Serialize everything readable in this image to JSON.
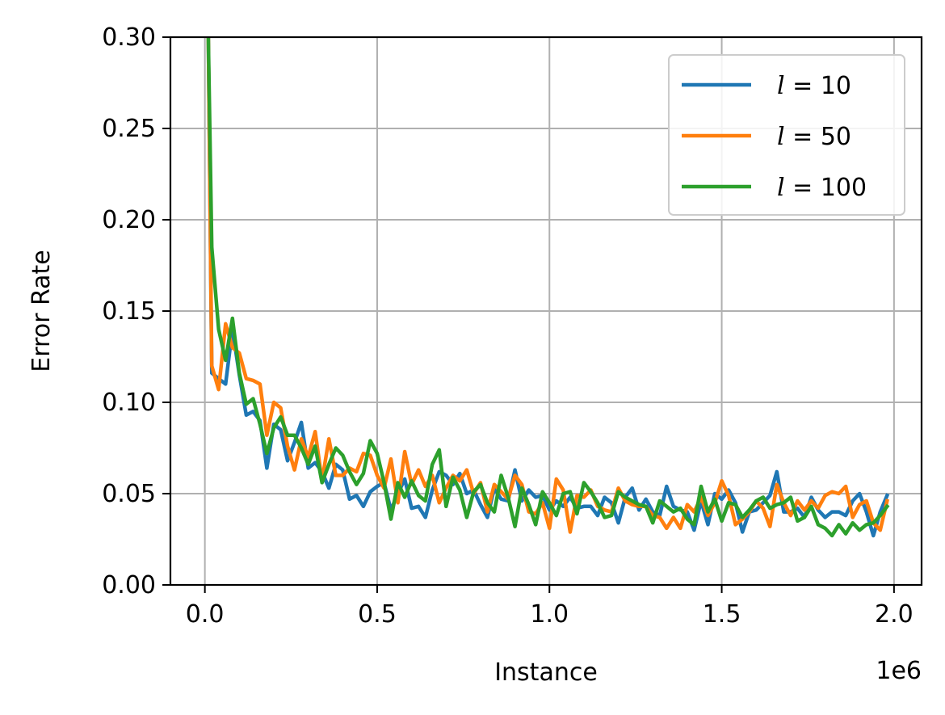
{
  "chart_data": {
    "type": "line",
    "xlabel": "Instance",
    "ylabel": "Error Rate",
    "x_offset_label": "1e6",
    "xlim": [
      -0.1,
      2.08
    ],
    "ylim": [
      0.0,
      0.3
    ],
    "x_ticks": [
      0.0,
      0.5,
      1.0,
      1.5,
      2.0
    ],
    "x_tick_labels": [
      "0.0",
      "0.5",
      "1.0",
      "1.5",
      "2.0"
    ],
    "y_ticks": [
      0.0,
      0.05,
      0.1,
      0.15,
      0.2,
      0.25,
      0.3
    ],
    "y_tick_labels": [
      "0.00",
      "0.05",
      "0.10",
      "0.15",
      "0.20",
      "0.25",
      "0.30"
    ],
    "grid": true,
    "legend_position": "top-right",
    "x": [
      0.01,
      0.02,
      0.04,
      0.06,
      0.08,
      0.1,
      0.12,
      0.14,
      0.16,
      0.18,
      0.2,
      0.22,
      0.24,
      0.26,
      0.28,
      0.3,
      0.32,
      0.34,
      0.36,
      0.38,
      0.4,
      0.42,
      0.44,
      0.46,
      0.48,
      0.5,
      0.52,
      0.54,
      0.56,
      0.58,
      0.6,
      0.62,
      0.64,
      0.66,
      0.68,
      0.7,
      0.72,
      0.74,
      0.76,
      0.78,
      0.8,
      0.82,
      0.84,
      0.86,
      0.88,
      0.9,
      0.92,
      0.94,
      0.96,
      0.98,
      1.0,
      1.02,
      1.04,
      1.06,
      1.08,
      1.1,
      1.12,
      1.14,
      1.16,
      1.18,
      1.2,
      1.22,
      1.24,
      1.26,
      1.28,
      1.3,
      1.32,
      1.34,
      1.36,
      1.38,
      1.4,
      1.42,
      1.44,
      1.46,
      1.48,
      1.5,
      1.52,
      1.54,
      1.56,
      1.58,
      1.6,
      1.62,
      1.64,
      1.66,
      1.68,
      1.7,
      1.72,
      1.74,
      1.76,
      1.78,
      1.8,
      1.82,
      1.84,
      1.86,
      1.88,
      1.9,
      1.92,
      1.94,
      1.96,
      1.98
    ],
    "series": [
      {
        "name": "l = 10",
        "color": "#1f77b4",
        "values": [
          0.3,
          0.116,
          0.113,
          0.11,
          0.14,
          0.115,
          0.093,
          0.095,
          0.09,
          0.064,
          0.088,
          0.085,
          0.068,
          0.078,
          0.089,
          0.064,
          0.067,
          0.062,
          0.053,
          0.066,
          0.063,
          0.047,
          0.049,
          0.043,
          0.051,
          0.054,
          0.056,
          0.041,
          0.05,
          0.058,
          0.042,
          0.043,
          0.037,
          0.052,
          0.062,
          0.06,
          0.055,
          0.061,
          0.05,
          0.052,
          0.044,
          0.037,
          0.053,
          0.047,
          0.046,
          0.063,
          0.046,
          0.052,
          0.048,
          0.049,
          0.041,
          0.046,
          0.043,
          0.048,
          0.042,
          0.043,
          0.043,
          0.038,
          0.048,
          0.045,
          0.034,
          0.048,
          0.053,
          0.041,
          0.047,
          0.04,
          0.038,
          0.054,
          0.043,
          0.041,
          0.04,
          0.03,
          0.046,
          0.033,
          0.05,
          0.047,
          0.052,
          0.045,
          0.029,
          0.04,
          0.041,
          0.045,
          0.049,
          0.062,
          0.04,
          0.04,
          0.042,
          0.037,
          0.048,
          0.041,
          0.037,
          0.04,
          0.04,
          0.038,
          0.046,
          0.05,
          0.04,
          0.027,
          0.04,
          0.049
        ]
      },
      {
        "name": "l = 50",
        "color": "#ff7f0e",
        "values": [
          0.3,
          0.12,
          0.107,
          0.143,
          0.13,
          0.127,
          0.113,
          0.112,
          0.11,
          0.082,
          0.1,
          0.097,
          0.076,
          0.063,
          0.08,
          0.07,
          0.084,
          0.057,
          0.08,
          0.06,
          0.06,
          0.064,
          0.062,
          0.072,
          0.071,
          0.06,
          0.053,
          0.069,
          0.045,
          0.073,
          0.055,
          0.063,
          0.054,
          0.06,
          0.045,
          0.053,
          0.06,
          0.057,
          0.063,
          0.05,
          0.056,
          0.04,
          0.055,
          0.051,
          0.047,
          0.06,
          0.055,
          0.04,
          0.039,
          0.045,
          0.031,
          0.058,
          0.052,
          0.029,
          0.049,
          0.048,
          0.052,
          0.043,
          0.041,
          0.04,
          0.053,
          0.046,
          0.044,
          0.043,
          0.043,
          0.038,
          0.037,
          0.031,
          0.037,
          0.031,
          0.044,
          0.04,
          0.048,
          0.038,
          0.045,
          0.057,
          0.049,
          0.033,
          0.036,
          0.04,
          0.046,
          0.042,
          0.032,
          0.055,
          0.045,
          0.038,
          0.046,
          0.041,
          0.046,
          0.042,
          0.049,
          0.051,
          0.05,
          0.054,
          0.037,
          0.044,
          0.046,
          0.034,
          0.03,
          0.046
        ]
      },
      {
        "name": "l = 100",
        "color": "#2ca02c",
        "values": [
          0.3,
          0.185,
          0.14,
          0.123,
          0.146,
          0.116,
          0.099,
          0.102,
          0.088,
          0.072,
          0.086,
          0.092,
          0.082,
          0.082,
          0.075,
          0.066,
          0.076,
          0.056,
          0.066,
          0.075,
          0.071,
          0.062,
          0.055,
          0.061,
          0.079,
          0.072,
          0.056,
          0.036,
          0.056,
          0.048,
          0.057,
          0.049,
          0.046,
          0.066,
          0.074,
          0.043,
          0.059,
          0.052,
          0.037,
          0.051,
          0.055,
          0.045,
          0.04,
          0.06,
          0.048,
          0.032,
          0.053,
          0.044,
          0.033,
          0.051,
          0.045,
          0.038,
          0.05,
          0.051,
          0.039,
          0.056,
          0.051,
          0.045,
          0.037,
          0.038,
          0.051,
          0.048,
          0.046,
          0.044,
          0.043,
          0.034,
          0.046,
          0.043,
          0.04,
          0.042,
          0.036,
          0.033,
          0.054,
          0.04,
          0.047,
          0.035,
          0.045,
          0.044,
          0.037,
          0.041,
          0.046,
          0.048,
          0.042,
          0.044,
          0.045,
          0.048,
          0.035,
          0.037,
          0.043,
          0.033,
          0.031,
          0.027,
          0.033,
          0.028,
          0.034,
          0.03,
          0.033,
          0.034,
          0.038,
          0.043
        ]
      }
    ]
  }
}
